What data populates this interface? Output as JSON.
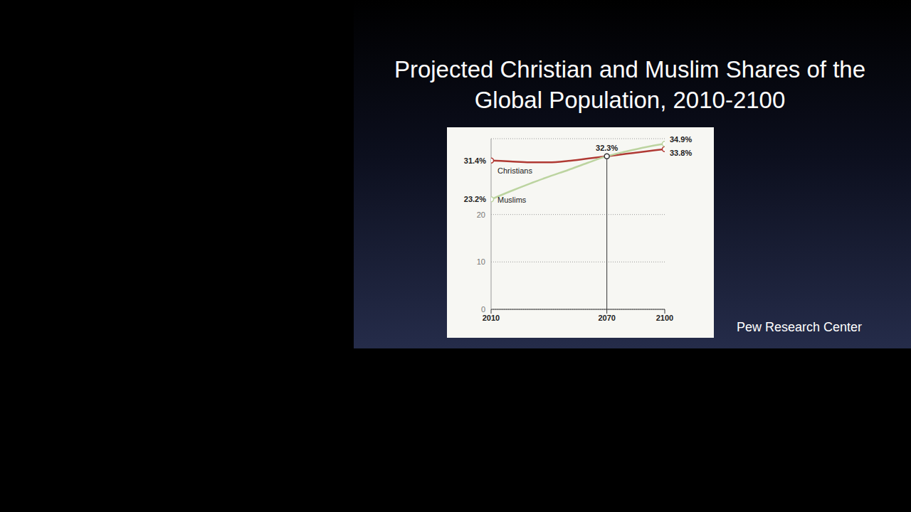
{
  "title": "Projected Christian and Muslim Shares of the Global Population, 2010-2100",
  "source": "Pew Research Center",
  "chart_data": {
    "type": "line",
    "x": [
      2010,
      2020,
      2030,
      2040,
      2050,
      2060,
      2070,
      2080,
      2090,
      2100
    ],
    "series": [
      {
        "name": "Christians",
        "color": "#b03a34",
        "values": [
          31.4,
          31.2,
          31.0,
          31.0,
          31.3,
          31.8,
          32.3,
          32.8,
          33.3,
          33.8
        ],
        "value_labels": [
          "31.4%",
          null,
          null,
          null,
          null,
          null,
          null,
          null,
          null,
          "33.8%"
        ]
      },
      {
        "name": "Muslims",
        "color": "#bcd4a0",
        "values": [
          23.2,
          24.9,
          26.5,
          28.0,
          29.4,
          30.9,
          32.3,
          33.3,
          34.2,
          34.9
        ],
        "value_labels": [
          "23.2%",
          null,
          null,
          null,
          null,
          null,
          "32.3%",
          null,
          null,
          "34.9%"
        ]
      }
    ],
    "xlim": [
      2010,
      2100
    ],
    "xticks": [
      2010,
      2070,
      2100
    ],
    "ylim": [
      0,
      36
    ],
    "yticks": [
      0,
      10,
      20
    ],
    "grid": true,
    "data_labels": true,
    "reference_lines": [
      {
        "x": 2070
      }
    ]
  }
}
